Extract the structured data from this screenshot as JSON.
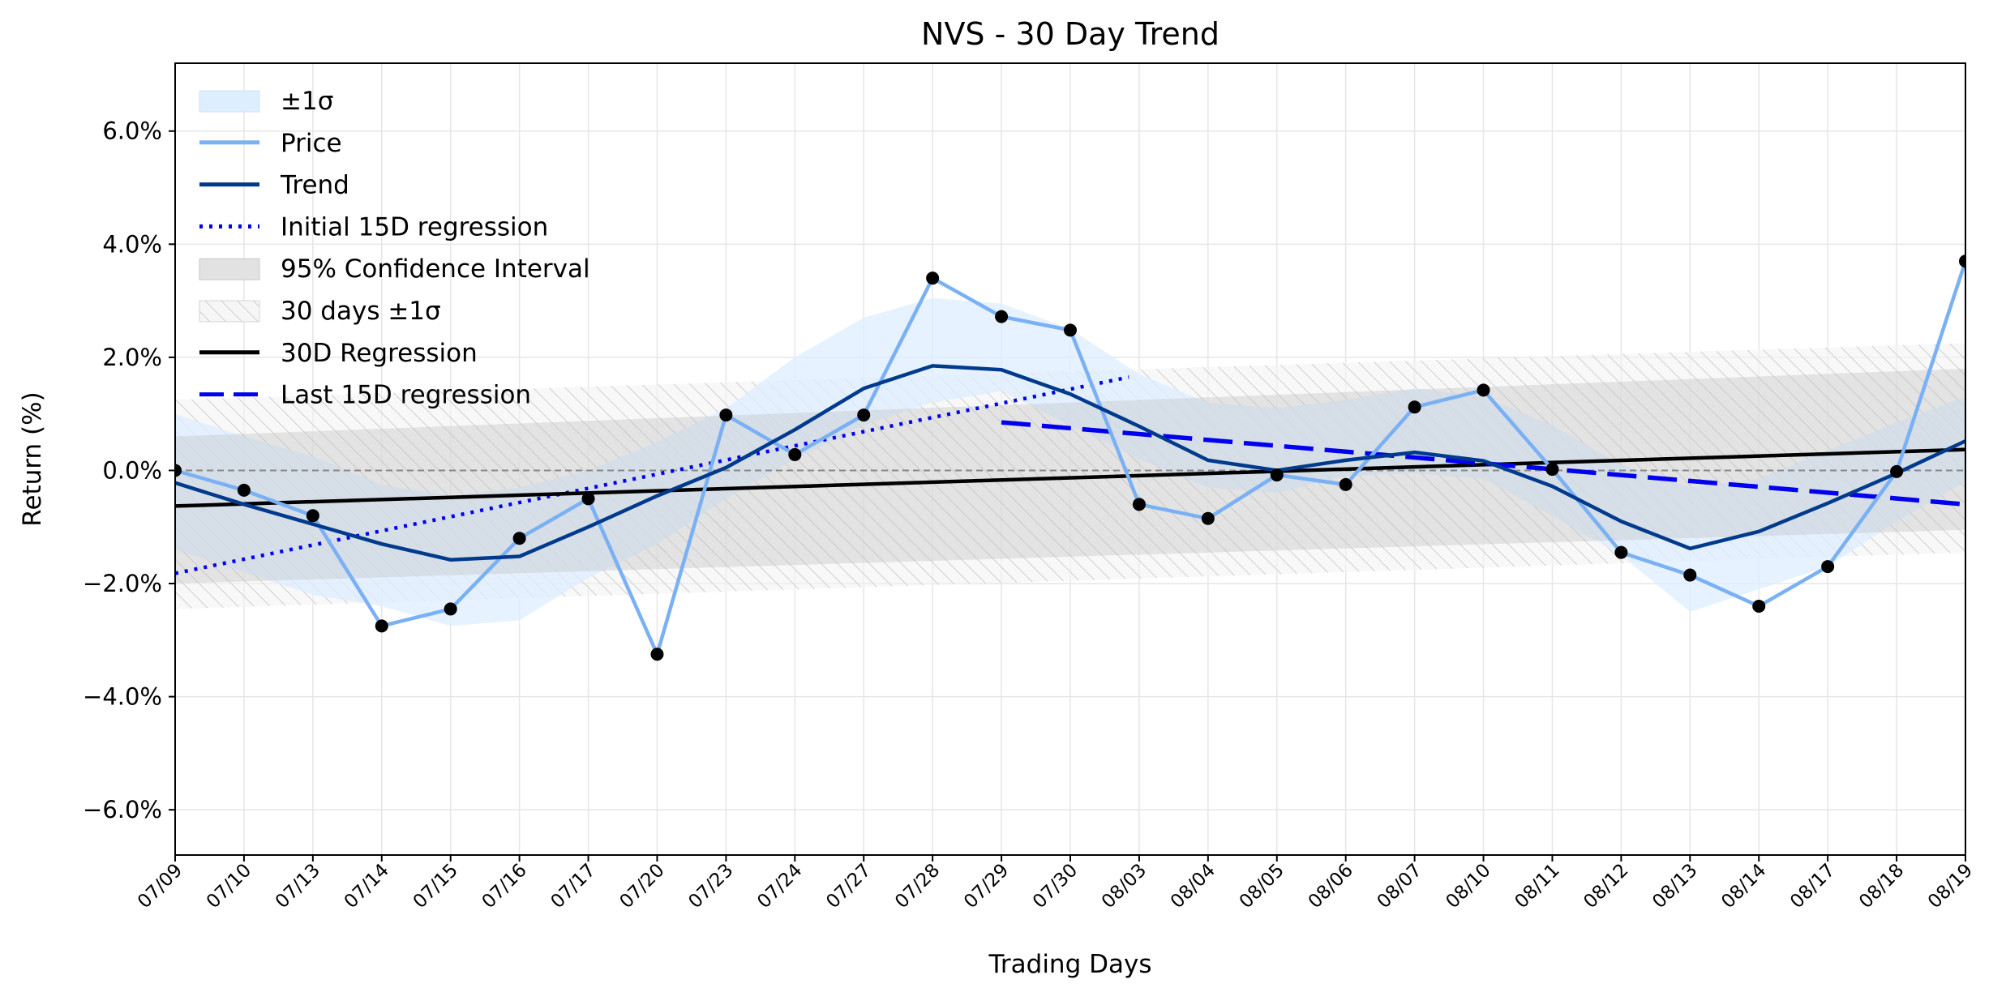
{
  "chart_data": {
    "type": "line",
    "title": "NVS - 30 Day Trend",
    "xlabel": "Trading Days",
    "ylabel": "Return (%)",
    "ylim": [
      -6.8,
      7.2
    ],
    "yticks": [
      -6,
      -4,
      -2,
      0,
      2,
      4,
      6
    ],
    "ytick_labels": [
      "−6.0%",
      "−4.0%",
      "−2.0%",
      "0.0%",
      "2.0%",
      "4.0%",
      "6.0%"
    ],
    "grid": true,
    "legend_position": "upper-left",
    "categories": [
      "07/09",
      "07/10",
      "07/13",
      "07/14",
      "07/15",
      "07/16",
      "07/17",
      "07/20",
      "07/23",
      "07/24",
      "07/27",
      "07/28",
      "07/29",
      "07/30",
      "08/03",
      "08/04",
      "08/05",
      "08/06",
      "08/07",
      "08/10",
      "08/11",
      "08/12",
      "08/13",
      "08/14",
      "08/17",
      "08/18",
      "08/19"
    ],
    "series": [
      {
        "name": "Price",
        "type": "line",
        "color": "#7ab0f4",
        "markers": true,
        "marker_color": "#000000",
        "values": [
          0.0,
          -0.35,
          -0.8,
          -2.75,
          -2.45,
          -1.2,
          -0.5,
          -3.25,
          0.98,
          0.28,
          0.98,
          3.4,
          2.72,
          2.48,
          -0.6,
          -0.85,
          -0.08,
          -0.25,
          1.12,
          1.42,
          0.02,
          -1.45,
          -1.85,
          -2.4,
          -1.7,
          -0.02,
          3.7
        ]
      },
      {
        "name": "Trend",
        "type": "line",
        "color": "#003a8c",
        "values": [
          -0.22,
          -0.6,
          -0.95,
          -1.3,
          -1.58,
          -1.52,
          -1.0,
          -0.45,
          0.05,
          0.72,
          1.45,
          1.85,
          1.78,
          1.35,
          0.78,
          0.18,
          0.0,
          0.18,
          0.32,
          0.17,
          -0.28,
          -0.9,
          -1.38,
          -1.08,
          -0.58,
          -0.05,
          0.52
        ]
      },
      {
        "name": "±1σ",
        "type": "area",
        "color": "#ddeeff",
        "lower": [
          -1.4,
          -1.8,
          -2.2,
          -2.4,
          -2.75,
          -2.65,
          -1.9,
          -1.3,
          -0.5,
          0.2,
          0.8,
          1.2,
          1.4,
          0.8,
          0.2,
          -0.3,
          -0.4,
          -0.1,
          -0.05,
          -0.15,
          -0.8,
          -1.5,
          -2.5,
          -2.1,
          -1.7,
          -0.9,
          -0.2
        ],
        "upper": [
          1.0,
          0.6,
          0.25,
          -0.25,
          -0.45,
          -0.3,
          0.0,
          0.5,
          1.1,
          2.0,
          2.7,
          3.05,
          2.95,
          2.5,
          1.7,
          1.2,
          1.1,
          1.25,
          1.45,
          1.3,
          0.8,
          0.1,
          -0.3,
          -0.15,
          0.35,
          0.85,
          1.3
        ]
      },
      {
        "name": "Initial 15D regression",
        "type": "line",
        "style": "dotted",
        "color": "#0000ee",
        "x_range": [
          0,
          13.85
        ],
        "y_range": [
          -1.82,
          1.65
        ]
      },
      {
        "name": "Last 15D regression",
        "type": "line",
        "style": "dashed",
        "color": "#0000ee",
        "x_range": [
          12,
          26
        ],
        "y_range": [
          0.85,
          -0.6
        ]
      },
      {
        "name": "30D Regression",
        "type": "line",
        "color": "#000000",
        "x_range": [
          0,
          26
        ],
        "y_range": [
          -0.63,
          0.37
        ]
      },
      {
        "name": "95% Confidence Interval",
        "type": "area",
        "color": "#e2e2e2",
        "lower_range": [
          -2.0,
          -1.05
        ],
        "upper_range": [
          0.6,
          1.8
        ]
      },
      {
        "name": "30 days ±1σ",
        "type": "area",
        "hatched": true,
        "color": "#d6d6d6",
        "lower_range": [
          -2.45,
          -1.45
        ],
        "upper_range": [
          1.25,
          2.25
        ]
      }
    ],
    "zero_line": {
      "y": 0,
      "style": "dashed",
      "color": "#888888"
    },
    "legend": [
      {
        "label": "±1σ",
        "kind": "patch",
        "color": "#ddeeff"
      },
      {
        "label": "Price",
        "kind": "line",
        "color": "#7ab0f4"
      },
      {
        "label": "Trend",
        "kind": "line",
        "color": "#003a8c"
      },
      {
        "label": "Initial 15D regression",
        "kind": "dotted",
        "color": "#0000ee"
      },
      {
        "label": "95% Confidence Interval",
        "kind": "patch",
        "color": "#e2e2e2"
      },
      {
        "label": "30 days ±1σ",
        "kind": "hatch",
        "color": "#d6d6d6"
      },
      {
        "label": "30D Regression",
        "kind": "line",
        "color": "#000000"
      },
      {
        "label": "Last 15D regression",
        "kind": "dashed",
        "color": "#0000ee"
      }
    ]
  }
}
